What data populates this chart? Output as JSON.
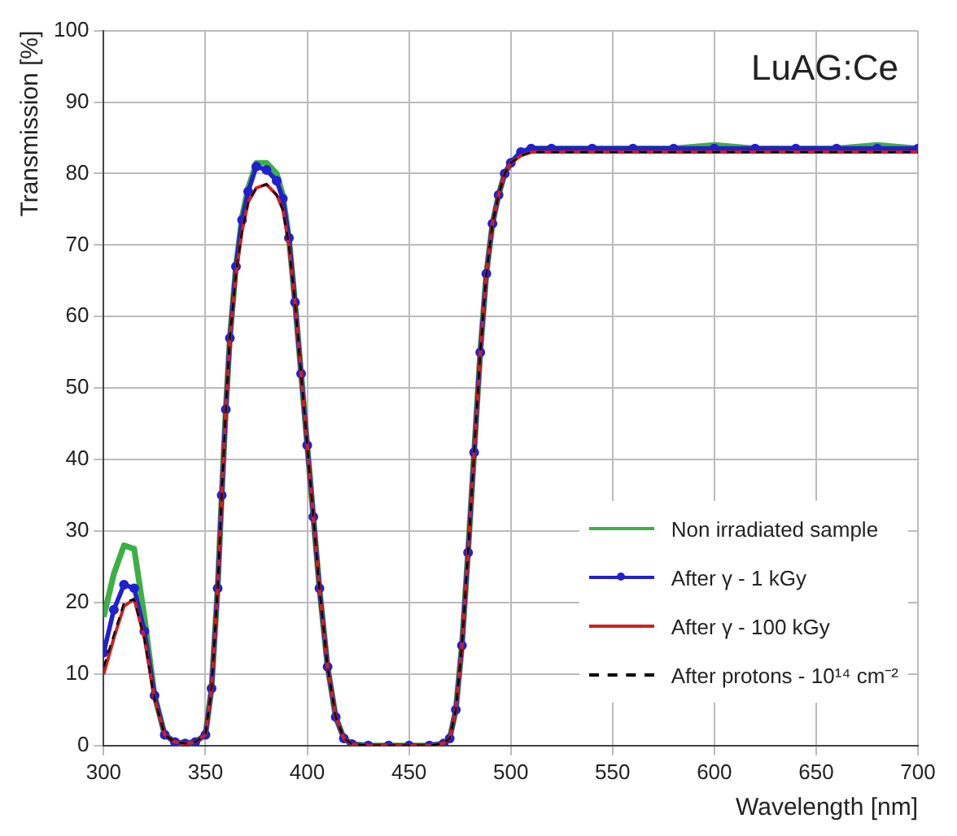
{
  "chart_data": {
    "type": "line",
    "xlabel": "Wavelength [nm]",
    "ylabel": "Transmission [%]",
    "annotations": [
      "LuAG:Ce"
    ],
    "x": [
      300,
      305,
      310,
      315,
      320,
      325,
      330,
      335,
      340,
      345,
      350,
      353,
      356,
      358,
      360,
      362,
      365,
      368,
      371,
      375,
      380,
      385,
      388,
      391,
      394,
      397,
      400,
      403,
      406,
      410,
      414,
      418,
      422,
      430,
      440,
      450,
      460,
      467,
      470,
      473,
      476,
      479,
      482,
      485,
      488,
      491,
      494,
      497,
      500,
      505,
      510,
      520,
      540,
      560,
      580,
      600,
      620,
      640,
      660,
      680,
      700
    ],
    "xlim": [
      300,
      700
    ],
    "xticks": [
      300,
      350,
      400,
      450,
      500,
      550,
      600,
      650,
      700
    ],
    "ylim": [
      0,
      100
    ],
    "yticks": [
      0,
      10,
      20,
      30,
      40,
      50,
      60,
      70,
      80,
      90,
      100
    ],
    "grid": true,
    "legend": "bottom right",
    "series": [
      {
        "name": "Non irradiated sample",
        "color": "#3cb043",
        "line_style": "solid",
        "marker": "none",
        "values": [
          18,
          24,
          28,
          27.5,
          18,
          7,
          1.5,
          0.5,
          0.3,
          0.5,
          1.5,
          8,
          22,
          35,
          47,
          57,
          67,
          74,
          78,
          81.5,
          81.5,
          80,
          77,
          71,
          62,
          52,
          42,
          32,
          22,
          11,
          4,
          1,
          0.2,
          0,
          0,
          0,
          0,
          0.3,
          1,
          5,
          14,
          27,
          41,
          55,
          66,
          73,
          77,
          80,
          81.5,
          83,
          83.5,
          83.5,
          83.5,
          83.5,
          83.5,
          84,
          83.5,
          83.5,
          83.5,
          84,
          83.5
        ]
      },
      {
        "name": "After γ - 1 kGy",
        "color": "#2020d0",
        "line_style": "solid",
        "marker": "circle",
        "values": [
          13,
          19,
          22.5,
          22,
          16,
          7,
          1.5,
          0.5,
          0.3,
          0.5,
          1.5,
          8,
          22,
          35,
          47,
          57,
          67,
          73.5,
          77.5,
          81,
          80.5,
          79,
          76.5,
          71,
          62,
          52,
          42,
          32,
          22,
          11,
          4,
          1,
          0.2,
          0,
          0,
          0,
          0,
          0.3,
          1,
          5,
          14,
          27,
          41,
          55,
          66,
          73,
          77,
          80,
          81.5,
          83,
          83.5,
          83.5,
          83.5,
          83.5,
          83.5,
          83.5,
          83.5,
          83.5,
          83.5,
          83.5,
          83.5
        ]
      },
      {
        "name": "After γ - 100 kGy",
        "color": "#d02020",
        "line_style": "solid",
        "marker": "none",
        "values": [
          10,
          15,
          19.5,
          20.5,
          15,
          6.5,
          1.5,
          0.5,
          0.3,
          0.5,
          1.5,
          8,
          22,
          35,
          47,
          57,
          66,
          72,
          76,
          78,
          78.5,
          77,
          75,
          70,
          62,
          52,
          42,
          32,
          22,
          11,
          4,
          1,
          0.2,
          0,
          0,
          0,
          0,
          0.3,
          1,
          5,
          14,
          27,
          41,
          55,
          66,
          73,
          77,
          80,
          81.5,
          82.5,
          83,
          83,
          83,
          83,
          83,
          83,
          83,
          83,
          83,
          83,
          83
        ]
      },
      {
        "name": "After protons - 10¹⁴ cm⁻²",
        "color": "#000000",
        "line_style": "dashed",
        "marker": "none",
        "values": [
          11,
          15.5,
          20,
          20.5,
          15,
          6.5,
          1.5,
          0.5,
          0.3,
          0.5,
          1.5,
          8,
          22,
          35,
          47,
          57,
          66,
          72,
          76,
          78,
          78.5,
          77,
          75,
          70,
          62,
          52,
          42,
          32,
          22,
          11,
          4,
          1,
          0.2,
          0,
          0,
          0,
          0,
          0.3,
          1,
          5,
          14,
          27,
          41,
          55,
          66,
          73,
          77,
          80,
          81.5,
          82.5,
          83,
          83,
          83,
          83,
          83,
          83,
          83,
          83,
          83,
          83,
          83
        ]
      }
    ]
  }
}
